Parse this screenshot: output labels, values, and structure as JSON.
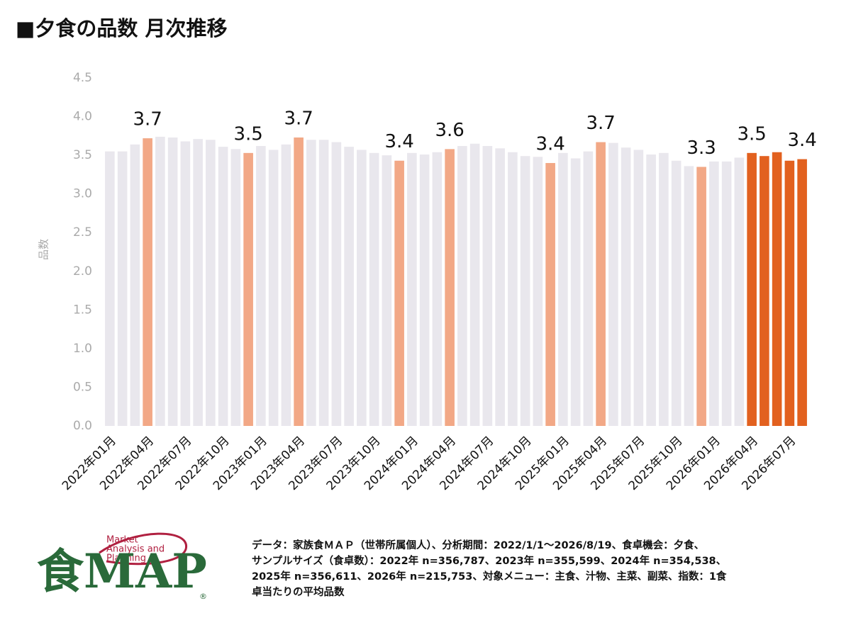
{
  "chart_data": {
    "type": "bar",
    "title": "■夕食の品数 月次推移",
    "ylabel": "品数",
    "categories": [
      "2022年01月",
      null,
      null,
      "2022年04月",
      null,
      null,
      "2022年07月",
      null,
      null,
      "2022年10月",
      null,
      null,
      "2023年01月",
      null,
      null,
      "2023年04月",
      null,
      null,
      "2023年07月",
      null,
      null,
      "2023年10月",
      null,
      null,
      "2024年01月",
      null,
      null,
      "2024年04月",
      null,
      null,
      "2024年07月",
      null,
      null,
      "2024年10月",
      null,
      null,
      "2025年01月",
      null,
      null,
      "2025年04月",
      null,
      null,
      "2025年07月",
      null,
      null,
      "2025年10月",
      null,
      null,
      "2026年01月",
      null,
      null,
      "2026年04月",
      null,
      null,
      "2026年07月",
      null
    ],
    "values": [
      3.55,
      3.55,
      3.64,
      3.72,
      3.74,
      3.73,
      3.68,
      3.71,
      3.7,
      3.61,
      3.58,
      3.53,
      3.62,
      3.57,
      3.64,
      3.73,
      3.7,
      3.7,
      3.67,
      3.61,
      3.57,
      3.53,
      3.5,
      3.43,
      3.53,
      3.51,
      3.54,
      3.58,
      3.62,
      3.65,
      3.62,
      3.59,
      3.54,
      3.49,
      3.48,
      3.4,
      3.53,
      3.46,
      3.55,
      3.67,
      3.66,
      3.6,
      3.57,
      3.51,
      3.53,
      3.43,
      3.36,
      3.35,
      3.42,
      3.42,
      3.47,
      3.53,
      3.49,
      3.54,
      3.43,
      3.45
    ],
    "value_labels": [
      null,
      null,
      null,
      "3.7",
      null,
      null,
      null,
      null,
      null,
      null,
      null,
      "3.5",
      null,
      null,
      null,
      "3.7",
      null,
      null,
      null,
      null,
      null,
      null,
      null,
      "3.4",
      null,
      null,
      null,
      "3.6",
      null,
      null,
      null,
      null,
      null,
      null,
      null,
      "3.4",
      null,
      null,
      null,
      "3.7",
      null,
      null,
      null,
      null,
      null,
      null,
      null,
      "3.3",
      null,
      null,
      null,
      "3.5",
      null,
      null,
      null,
      "3.4"
    ],
    "colors": [
      "#e9e7ed",
      "#e9e7ed",
      "#e9e7ed",
      "#f2a886",
      "#e9e7ed",
      "#e9e7ed",
      "#e9e7ed",
      "#e9e7ed",
      "#e9e7ed",
      "#e9e7ed",
      "#e9e7ed",
      "#f2a886",
      "#e9e7ed",
      "#e9e7ed",
      "#e9e7ed",
      "#f2a886",
      "#e9e7ed",
      "#e9e7ed",
      "#e9e7ed",
      "#e9e7ed",
      "#e9e7ed",
      "#e9e7ed",
      "#e9e7ed",
      "#f2a886",
      "#e9e7ed",
      "#e9e7ed",
      "#e9e7ed",
      "#f2a886",
      "#e9e7ed",
      "#e9e7ed",
      "#e9e7ed",
      "#e9e7ed",
      "#e9e7ed",
      "#e9e7ed",
      "#e9e7ed",
      "#f2a886",
      "#e9e7ed",
      "#e9e7ed",
      "#e9e7ed",
      "#f2a886",
      "#e9e7ed",
      "#e9e7ed",
      "#e9e7ed",
      "#e9e7ed",
      "#e9e7ed",
      "#e9e7ed",
      "#e9e7ed",
      "#f2a886",
      "#e9e7ed",
      "#e9e7ed",
      "#e9e7ed",
      "#e2611f",
      "#e2611f",
      "#e2611f",
      "#e2611f",
      "#e2611f"
    ],
    "ylim": [
      0,
      4.5
    ],
    "yticks": [
      {
        "value": 0,
        "label": "0.0"
      },
      0.5,
      {
        "value": 1,
        "label": "1.0"
      },
      1.5,
      {
        "value": 2,
        "label": "2.0"
      },
      2.5,
      {
        "value": 3,
        "label": "3.0"
      },
      3.5,
      {
        "value": 4,
        "label": "4.0"
      },
      4.5
    ],
    "grid": false
  },
  "footer": {
    "note": [
      "データ：家族食ＭＡＰ（世帯所属個人）、分析期間：2022/1/1～2026/8/19、食卓機会：夕食、",
      "サンプルサイズ（食卓数）：2022年 n=356,787、2023年 n=355,599、2024年 n=354,538、",
      "2025年 n=356,611、2026年 n=215,753、対象メニュー：主食、汁物、主菜、副菜、指数：1食",
      "卓当たりの平均品数"
    ],
    "logo": {
      "subtitle": [
        "Market",
        "Analysis and",
        "Planning"
      ],
      "mark": "食MAP",
      "registered": "®"
    }
  }
}
